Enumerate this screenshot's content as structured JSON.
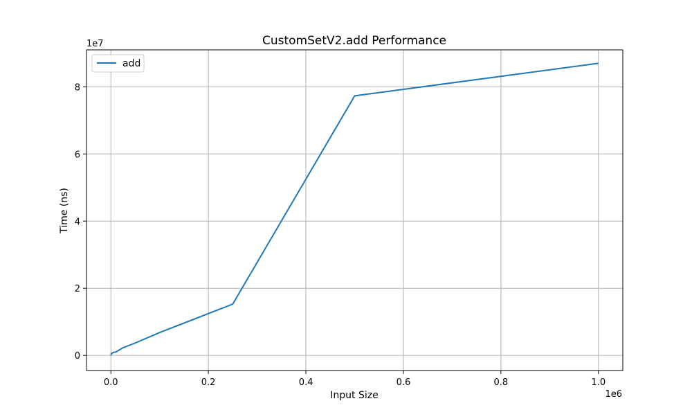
{
  "chart_data": {
    "type": "line",
    "title": "CustomSetV2.add Performance",
    "xlabel": "Input Size",
    "ylabel": "Time (ns)",
    "x_offset_label": "1e6",
    "y_offset_label": "1e7",
    "xlim": [
      -0.05,
      1.05
    ],
    "ylim": [
      -0.45,
      9.1
    ],
    "x_scale": 1000000,
    "y_scale": 10000000,
    "xticks": [
      0.0,
      0.2,
      0.4,
      0.6,
      0.8,
      1.0
    ],
    "xtick_labels": [
      "0.0",
      "0.2",
      "0.4",
      "0.6",
      "0.8",
      "1.0"
    ],
    "yticks": [
      0,
      2,
      4,
      6,
      8
    ],
    "ytick_labels": [
      "0",
      "2",
      "4",
      "6",
      "8"
    ],
    "grid": true,
    "legend_position": "top-left",
    "series": [
      {
        "name": "add",
        "color": "#1f77b4",
        "x": [
          0,
          1000,
          5000,
          10000,
          25000,
          50000,
          100000,
          250000,
          500000,
          1000000
        ],
        "y": [
          0,
          500000,
          900000,
          1000000,
          2300000,
          3700000,
          6800000,
          15300000,
          77300000,
          87000000
        ]
      }
    ]
  }
}
